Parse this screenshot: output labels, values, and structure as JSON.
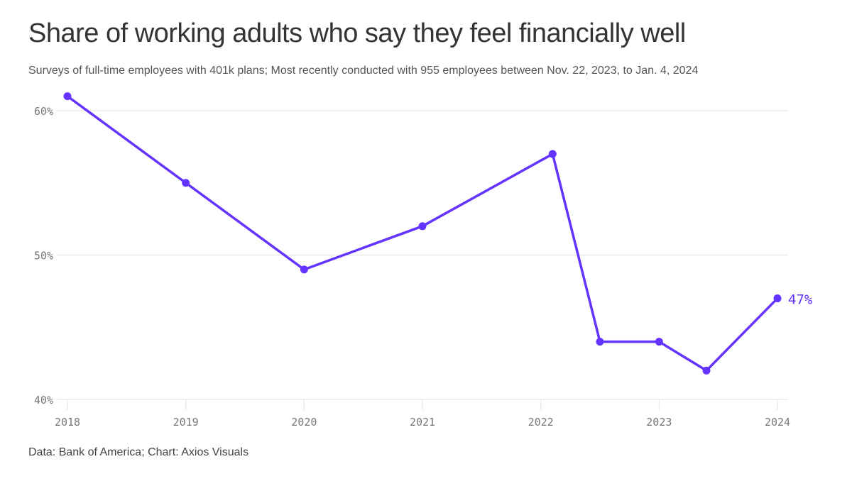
{
  "chart_data": {
    "type": "line",
    "title": "Share of working adults who say they feel financially well",
    "subtitle": "Surveys of full-time employees with 401k plans; Most recently conducted with 955 employees between Nov. 22, 2023, to Jan. 4, 2024",
    "source": "Data: Bank of America; Chart: Axios Visuals",
    "xlabel": "",
    "ylabel": "",
    "x_ticks": [
      "2018",
      "2019",
      "2020",
      "2021",
      "2022",
      "2023",
      "2024"
    ],
    "y_ticks": [
      {
        "value": 40,
        "label": "40%"
      },
      {
        "value": 50,
        "label": "50%"
      },
      {
        "value": 60,
        "label": "60%"
      }
    ],
    "ylim": [
      40,
      61
    ],
    "xlim": [
      2018,
      2024
    ],
    "grid": true,
    "line_color": "#6533ff",
    "series": [
      {
        "x": [
          2018.0,
          2019.0,
          2020.0,
          2021.0,
          2022.1,
          2022.5,
          2023.0,
          2023.4,
          2024.0
        ],
        "values": [
          61,
          55,
          49,
          52,
          57,
          44,
          44,
          42,
          47
        ]
      }
    ],
    "end_label": "47%"
  }
}
